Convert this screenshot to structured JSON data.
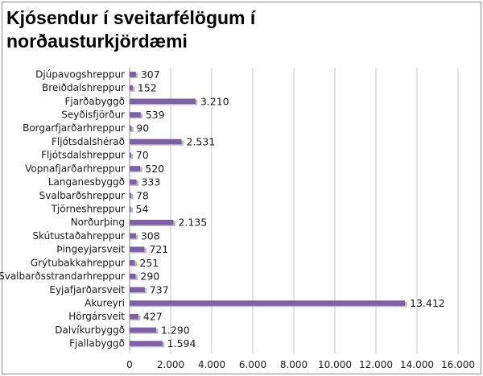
{
  "chart_data": {
    "type": "bar",
    "orientation": "horizontal",
    "title": "Kjósendur í sveitarfélögum í norðausturkjördæmi",
    "categories": [
      "Djúpavogshreppur",
      "Breiðdalshreppur",
      "Fjarðabyggð",
      "Seyðisfjörður",
      "Borgarfjarðarhreppur",
      "Fljótsdalshérað",
      "Fljótsdalshreppur",
      "Vopnafjarðarhreppur",
      "Langanesbyggð",
      "Svalbarðshreppur",
      "Tjörneshreppur",
      "Norðurþing",
      "Skútustaðahreppur",
      "Þingeyjarsveit",
      "Grýtubakkahreppur",
      "Svalbarðsstrandarhreppur",
      "Eyjafjarðarsveit",
      "Akureyri",
      "Hörgársveit",
      "Dalvíkurbyggð",
      "Fjallabyggð"
    ],
    "values": [
      307,
      152,
      3210,
      539,
      90,
      2531,
      70,
      520,
      333,
      78,
      54,
      2135,
      308,
      721,
      251,
      290,
      737,
      13412,
      427,
      1290,
      1594
    ],
    "value_labels": [
      "307",
      "152",
      "3.210",
      "539",
      "90",
      "2.531",
      "70",
      "520",
      "333",
      "78",
      "54",
      "2.135",
      "308",
      "721",
      "251",
      "290",
      "737",
      "13.412",
      "427",
      "1.290",
      "1.594"
    ],
    "xlim": [
      0,
      16000
    ],
    "xticks": [
      0,
      2000,
      4000,
      6000,
      8000,
      10000,
      12000,
      14000,
      16000
    ],
    "xtick_labels": [
      "0",
      "2.000",
      "4.000",
      "6.000",
      "8.000",
      "10.000",
      "12.000",
      "14.000",
      "16.000"
    ],
    "xlabel": "",
    "ylabel": "",
    "grid": true,
    "legend": "none",
    "bar_color": "#7f5fa8",
    "grid_color": "#c8c8c8"
  }
}
